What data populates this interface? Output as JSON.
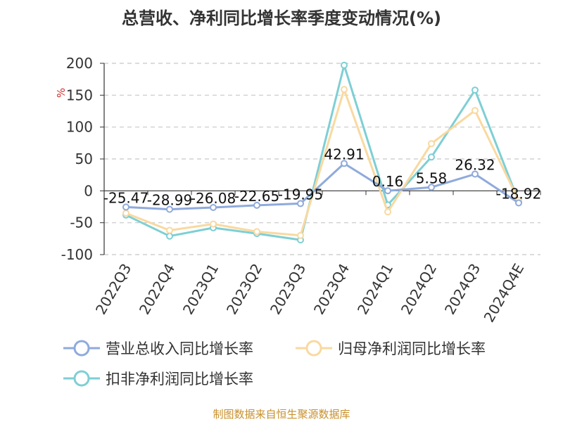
{
  "colors": {
    "revenue": "#8FAADC",
    "net_profit": "#F9D9A0",
    "deducted_profit": "#7ECFD4",
    "axis_unit": "#d03030",
    "source": "#c8902c"
  },
  "chart_data": {
    "type": "line",
    "title": "总营收、净利同比增长率季度变动情况(%)",
    "ylabel": "%",
    "ylim": [
      -100,
      200
    ],
    "yticks": [
      -100,
      -50,
      0,
      50,
      100,
      150,
      200
    ],
    "grid": true,
    "legend_position": "bottom",
    "categories": [
      "2022Q3",
      "2022Q4",
      "2023Q1",
      "2023Q2",
      "2023Q3",
      "2023Q4",
      "2024Q1",
      "2024Q2",
      "2024Q3",
      "2024Q4E"
    ],
    "series": [
      {
        "name": "营业总收入同比增长率",
        "values": [
          -25.47,
          -28.99,
          -26.08,
          -22.65,
          -19.95,
          42.91,
          0.16,
          5.58,
          26.32,
          -18.92
        ],
        "labels": [
          "-25.47",
          "-28.99",
          "-26.08",
          "-22.65",
          "-19.95",
          "42.91",
          "0.16",
          "5.58",
          "26.32",
          "-18.92"
        ]
      },
      {
        "name": "归母净利润同比增长率",
        "values": [
          -35,
          -62,
          -52,
          -64,
          -70,
          159,
          -33,
          74,
          126,
          -15
        ]
      },
      {
        "name": "扣非净利润同比增长率",
        "values": [
          -38,
          -71,
          -58,
          -67,
          -77,
          197,
          -22,
          53,
          158,
          -17
        ]
      }
    ]
  },
  "footer": {
    "source": "制图数据来自恒生聚源数据库"
  }
}
